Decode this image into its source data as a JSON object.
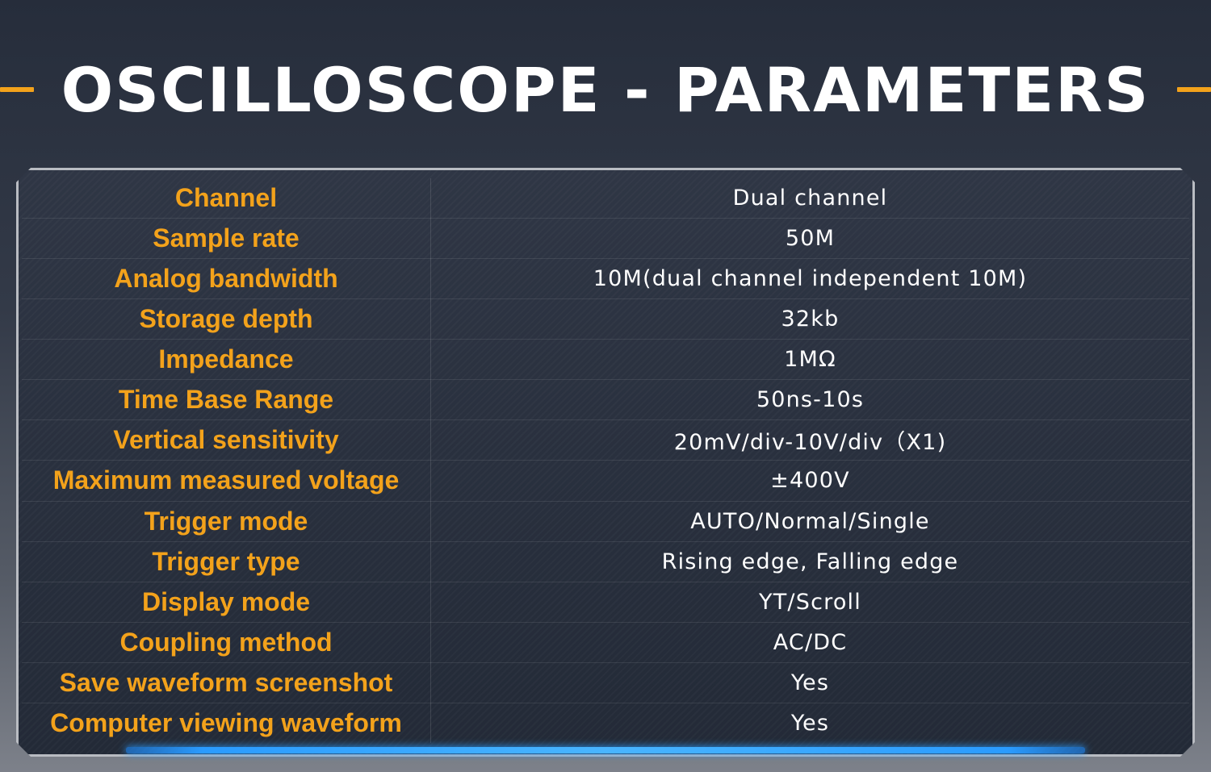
{
  "header": {
    "title": "OSCILLOSCOPE - PARAMETERS"
  },
  "colors": {
    "accent": "#f3a21b",
    "value_text": "#ffffff",
    "glow": "#2a9bff",
    "background_top": "#262d3b"
  },
  "specs": [
    {
      "label": "Channel",
      "value": "Dual channel"
    },
    {
      "label": "Sample rate",
      "value": "50M"
    },
    {
      "label": "Analog bandwidth",
      "value": "10M(dual channel independent 10M)"
    },
    {
      "label": "Storage depth",
      "value": "32kb"
    },
    {
      "label": "Impedance",
      "value": "1MΩ"
    },
    {
      "label": "Time Base Range",
      "value": "50ns-10s"
    },
    {
      "label": "Vertical sensitivity",
      "value": "20mV/div-10V/div（X1)"
    },
    {
      "label": "Maximum measured voltage",
      "value": "±400V"
    },
    {
      "label": "Trigger mode",
      "value": "AUTO/Normal/Single"
    },
    {
      "label": "Trigger type",
      "value": "Rising edge, Falling edge"
    },
    {
      "label": "Display mode",
      "value": "YT/Scroll"
    },
    {
      "label": "Coupling method",
      "value": "AC/DC"
    },
    {
      "label": "Save waveform screenshot",
      "value": "Yes"
    },
    {
      "label": "Computer viewing waveform",
      "value": "Yes"
    }
  ]
}
